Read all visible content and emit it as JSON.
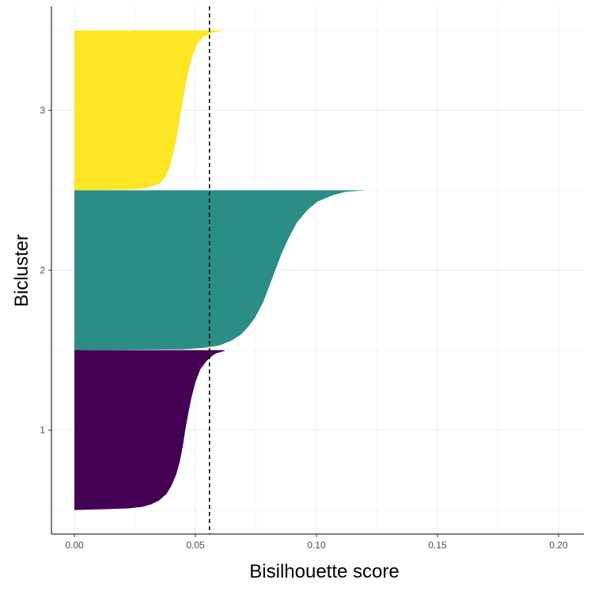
{
  "chart_data": {
    "type": "area",
    "orientation": "horizontal",
    "xlabel": "Bisilhouette score",
    "ylabel": "Bicluster",
    "xlim": [
      -0.0095,
      0.2105
    ],
    "ylim": [
      0.35,
      3.65
    ],
    "x_ticks": [
      0.0,
      0.05,
      0.1,
      0.15,
      0.2
    ],
    "x_tick_labels": [
      "0.00",
      "0.05",
      "0.10",
      "0.15",
      "0.20"
    ],
    "y_ticks": [
      1,
      2,
      3
    ],
    "y_tick_labels": [
      "1",
      "2",
      "3"
    ],
    "grid": true,
    "legend": "none",
    "reference_line": {
      "x": 0.0558,
      "style": "dashed",
      "color": "#000000"
    },
    "series": [
      {
        "name": "1",
        "color": "#440154",
        "y_range": [
          0.5,
          1.5
        ],
        "profile": [
          [
            0.5,
            0.0
          ],
          [
            0.51,
            0.022
          ],
          [
            0.52,
            0.028
          ],
          [
            0.535,
            0.0315
          ],
          [
            0.56,
            0.035
          ],
          [
            0.6,
            0.038
          ],
          [
            0.65,
            0.04
          ],
          [
            0.72,
            0.042
          ],
          [
            0.8,
            0.0435
          ],
          [
            0.9,
            0.0448
          ],
          [
            1.0,
            0.0458
          ],
          [
            1.1,
            0.047
          ],
          [
            1.2,
            0.0483
          ],
          [
            1.3,
            0.05
          ],
          [
            1.38,
            0.052
          ],
          [
            1.43,
            0.0545
          ],
          [
            1.46,
            0.0565
          ],
          [
            1.48,
            0.0585
          ],
          [
            1.495,
            0.062
          ],
          [
            1.5,
            0.062
          ]
        ]
      },
      {
        "name": "2",
        "color": "#2a8e86",
        "y_range": [
          1.5,
          2.5
        ],
        "profile": [
          [
            1.5,
            0.0
          ],
          [
            1.505,
            0.045
          ],
          [
            1.515,
            0.054
          ],
          [
            1.53,
            0.06
          ],
          [
            1.56,
            0.065
          ],
          [
            1.6,
            0.069
          ],
          [
            1.65,
            0.072
          ],
          [
            1.7,
            0.0745
          ],
          [
            1.8,
            0.078
          ],
          [
            1.9,
            0.0805
          ],
          [
            2.0,
            0.083
          ],
          [
            2.1,
            0.0855
          ],
          [
            2.2,
            0.0885
          ],
          [
            2.3,
            0.092
          ],
          [
            2.38,
            0.0965
          ],
          [
            2.43,
            0.1005
          ],
          [
            2.47,
            0.107
          ],
          [
            2.49,
            0.112
          ],
          [
            2.5,
            0.1205
          ]
        ]
      },
      {
        "name": "3",
        "color": "#fde725",
        "y_range": [
          2.5,
          3.5
        ],
        "profile": [
          [
            2.5,
            0.0
          ],
          [
            2.505,
            0.024
          ],
          [
            2.515,
            0.03
          ],
          [
            2.54,
            0.035
          ],
          [
            2.58,
            0.0375
          ],
          [
            2.65,
            0.0395
          ],
          [
            2.75,
            0.0412
          ],
          [
            2.85,
            0.0425
          ],
          [
            2.95,
            0.0436
          ],
          [
            3.05,
            0.0447
          ],
          [
            3.15,
            0.0458
          ],
          [
            3.25,
            0.0472
          ],
          [
            3.35,
            0.049
          ],
          [
            3.42,
            0.051
          ],
          [
            3.46,
            0.0535
          ],
          [
            3.485,
            0.057
          ],
          [
            3.5,
            0.0615
          ]
        ]
      }
    ]
  }
}
